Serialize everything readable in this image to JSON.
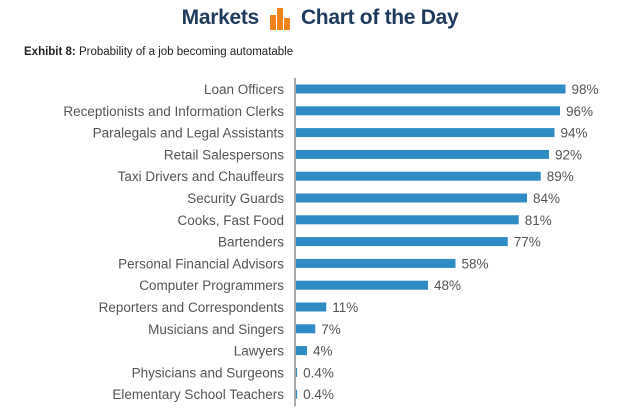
{
  "header": {
    "left_text": "Markets",
    "right_text": "Chart of the Day",
    "logo_icon": "bar-logo-icon",
    "brand_color": "#1f3b5c",
    "logo_color": "#f0821e"
  },
  "exhibit": {
    "label": "Exhibit 8:",
    "title": "Probability of a job becoming automatable"
  },
  "chart_data": {
    "type": "bar",
    "orientation": "horizontal",
    "categories": [
      "Loan Officers",
      "Receptionists and Information Clerks",
      "Paralegals and Legal Assistants",
      "Retail Salespersons",
      "Taxi Drivers and Chauffeurs",
      "Security Guards",
      "Cooks, Fast Food",
      "Bartenders",
      "Personal Financial Advisors",
      "Computer Programmers",
      "Reporters and Correspondents",
      "Musicians and Singers",
      "Lawyers",
      "Physicians and Surgeons",
      "Elementary School Teachers"
    ],
    "values": [
      98,
      96,
      94,
      92,
      89,
      84,
      81,
      77,
      58,
      48,
      11,
      7,
      4,
      0.4,
      0.4
    ],
    "value_labels": [
      "98%",
      "96%",
      "94%",
      "92%",
      "89%",
      "84%",
      "81%",
      "77%",
      "58%",
      "48%",
      "11%",
      "7%",
      "4%",
      "0.4%",
      "0.4%"
    ],
    "xlim": [
      0,
      100
    ],
    "bar_color": "#2f8bc4",
    "grid": false,
    "legend": "none"
  }
}
